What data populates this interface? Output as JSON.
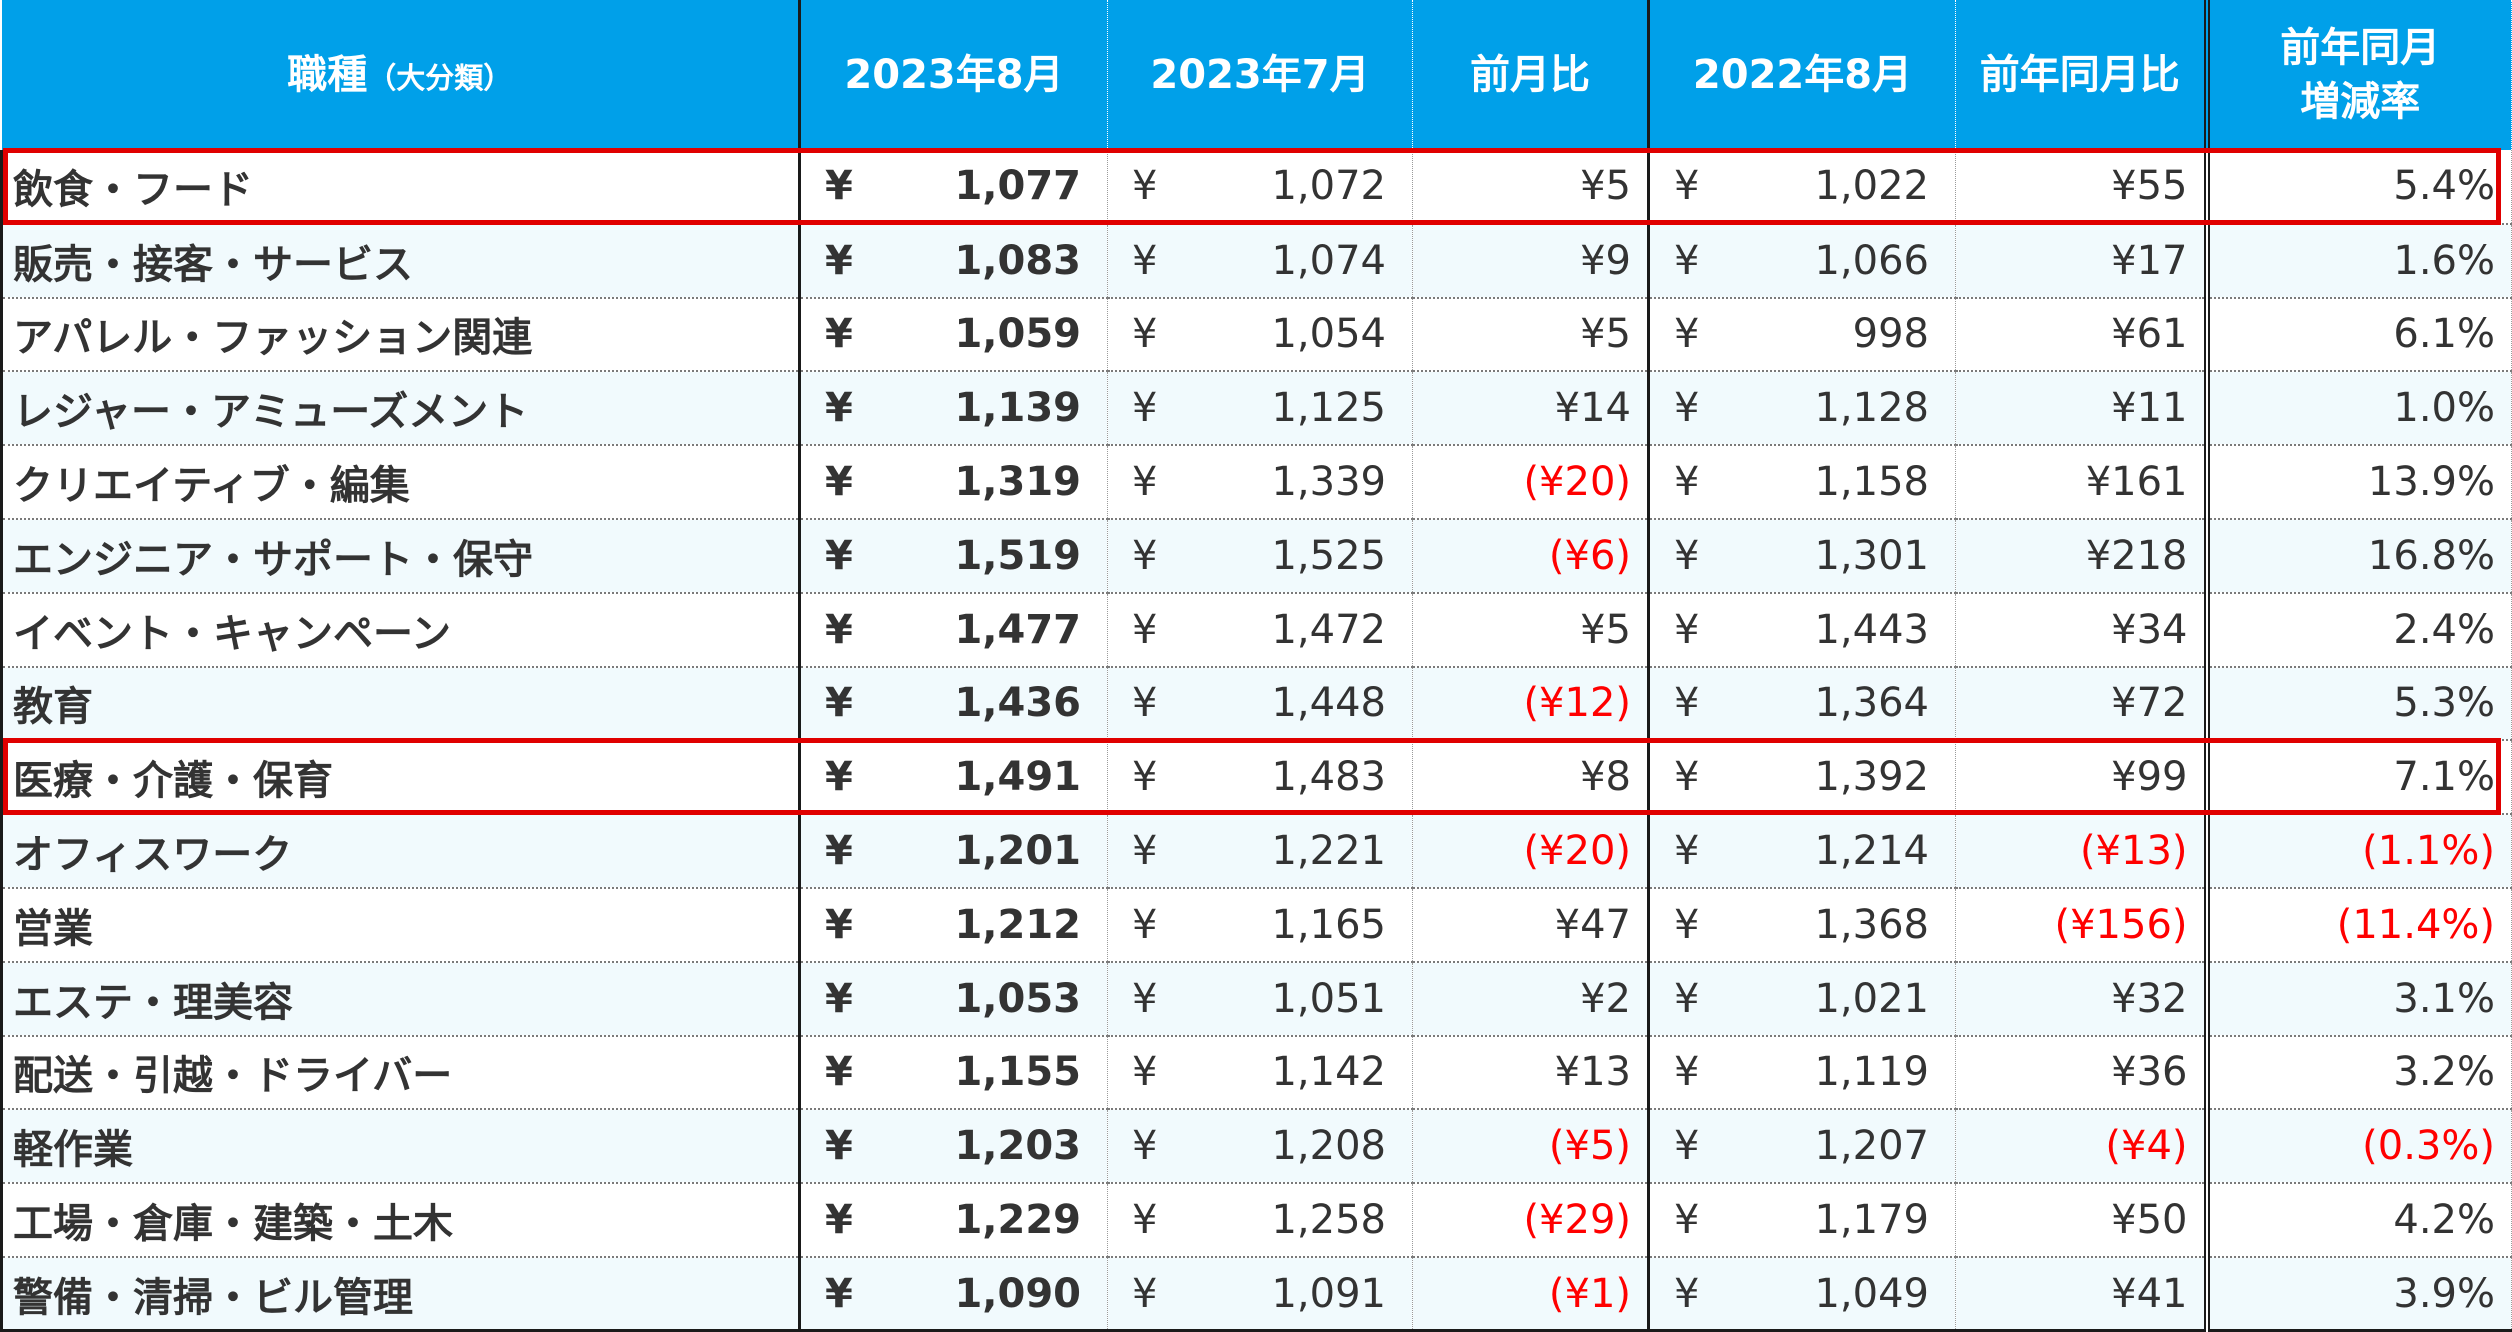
{
  "header": {
    "category": "職種",
    "category_sub": "（大分類）",
    "col_aug2023": "2023年8月",
    "col_jul2023": "2023年7月",
    "col_mom": "前月比",
    "col_aug2022": "2022年8月",
    "col_yoy": "前年同月比",
    "col_yoy_rate_line1": "前年同月",
    "col_yoy_rate_line2": "増減率"
  },
  "yen": "¥",
  "rows": [
    {
      "category": "飲食・フード",
      "aug2023": "1,077",
      "jul2023": "1,072",
      "mom": "¥5",
      "aug2022": "1,022",
      "yoy": "¥55",
      "rate": "5.4%"
    },
    {
      "category": "販売・接客・サービス",
      "aug2023": "1,083",
      "jul2023": "1,074",
      "mom": "¥9",
      "aug2022": "1,066",
      "yoy": "¥17",
      "rate": "1.6%"
    },
    {
      "category": "アパレル・ファッション関連",
      "aug2023": "1,059",
      "jul2023": "1,054",
      "mom": "¥5",
      "aug2022": "998",
      "yoy": "¥61",
      "rate": "6.1%"
    },
    {
      "category": "レジャー・アミューズメント",
      "aug2023": "1,139",
      "jul2023": "1,125",
      "mom": "¥14",
      "aug2022": "1,128",
      "yoy": "¥11",
      "rate": "1.0%"
    },
    {
      "category": "クリエイティブ・編集",
      "aug2023": "1,319",
      "jul2023": "1,339",
      "mom": "(¥20)",
      "aug2022": "1,158",
      "yoy": "¥161",
      "rate": "13.9%"
    },
    {
      "category": "エンジニア・サポート・保守",
      "aug2023": "1,519",
      "jul2023": "1,525",
      "mom": "(¥6)",
      "aug2022": "1,301",
      "yoy": "¥218",
      "rate": "16.8%"
    },
    {
      "category": "イベント・キャンペーン",
      "aug2023": "1,477",
      "jul2023": "1,472",
      "mom": "¥5",
      "aug2022": "1,443",
      "yoy": "¥34",
      "rate": "2.4%"
    },
    {
      "category": "教育",
      "aug2023": "1,436",
      "jul2023": "1,448",
      "mom": "(¥12)",
      "aug2022": "1,364",
      "yoy": "¥72",
      "rate": "5.3%"
    },
    {
      "category": "医療・介護・保育",
      "aug2023": "1,491",
      "jul2023": "1,483",
      "mom": "¥8",
      "aug2022": "1,392",
      "yoy": "¥99",
      "rate": "7.1%"
    },
    {
      "category": "オフィスワーク",
      "aug2023": "1,201",
      "jul2023": "1,221",
      "mom": "(¥20)",
      "aug2022": "1,214",
      "yoy": "(¥13)",
      "rate": "(1.1%)"
    },
    {
      "category": "営業",
      "aug2023": "1,212",
      "jul2023": "1,165",
      "mom": "¥47",
      "aug2022": "1,368",
      "yoy": "(¥156)",
      "rate": "(11.4%)"
    },
    {
      "category": "エステ・理美容",
      "aug2023": "1,053",
      "jul2023": "1,051",
      "mom": "¥2",
      "aug2022": "1,021",
      "yoy": "¥32",
      "rate": "3.1%"
    },
    {
      "category": "配送・引越・ドライバー",
      "aug2023": "1,155",
      "jul2023": "1,142",
      "mom": "¥13",
      "aug2022": "1,119",
      "yoy": "¥36",
      "rate": "3.2%"
    },
    {
      "category": "軽作業",
      "aug2023": "1,203",
      "jul2023": "1,208",
      "mom": "(¥5)",
      "aug2022": "1,207",
      "yoy": "(¥4)",
      "rate": "(0.3%)"
    },
    {
      "category": "工場・倉庫・建築・土木",
      "aug2023": "1,229",
      "jul2023": "1,258",
      "mom": "(¥29)",
      "aug2022": "1,179",
      "yoy": "¥50",
      "rate": "4.2%"
    },
    {
      "category": "警備・清掃・ビル管理",
      "aug2023": "1,090",
      "jul2023": "1,091",
      "mom": "(¥1)",
      "aug2022": "1,049",
      "yoy": "¥41",
      "rate": "3.9%"
    }
  ],
  "highlighted_rows": [
    0,
    8
  ],
  "colors": {
    "header_bg": "#00a0e9",
    "negative": "#ff0000",
    "highlight_border": "#e00000"
  }
}
